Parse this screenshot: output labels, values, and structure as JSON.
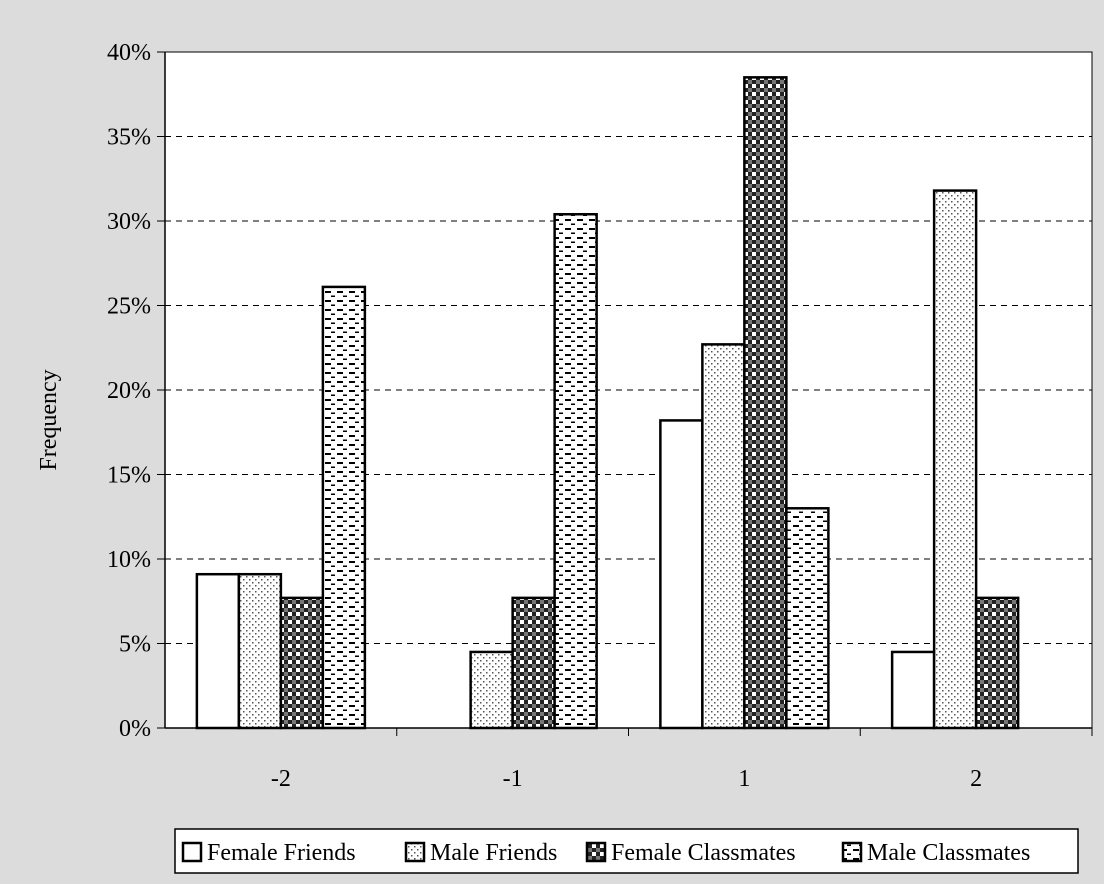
{
  "chart_data": {
    "type": "bar",
    "title": "",
    "xlabel": "",
    "ylabel": "Frequency",
    "categories": [
      "-2",
      "-1",
      "1",
      "2"
    ],
    "ylim": [
      0,
      40
    ],
    "yticks": [
      "0%",
      "5%",
      "10%",
      "15%",
      "20%",
      "25%",
      "30%",
      "35%",
      "40%"
    ],
    "ytick_values": [
      0,
      5,
      10,
      15,
      20,
      25,
      30,
      35,
      40
    ],
    "grid": "horizontal dashed",
    "legend_position": "bottom",
    "series": [
      {
        "name": "Female Friends",
        "pattern": "solid-white",
        "values": [
          9.1,
          0,
          18.2,
          4.5
        ]
      },
      {
        "name": "Male Friends",
        "pattern": "dotted",
        "values": [
          9.1,
          4.5,
          22.7,
          31.8
        ]
      },
      {
        "name": "Female Classmates",
        "pattern": "checkered",
        "values": [
          7.7,
          7.7,
          38.5,
          7.7
        ]
      },
      {
        "name": "Male Classmates",
        "pattern": "dashed-lines",
        "values": [
          26.1,
          30.4,
          13.0,
          0
        ]
      }
    ],
    "colors": {
      "background": "#dcdcdc",
      "plot_area": "#ffffff",
      "bar_stroke": "#000000"
    }
  }
}
